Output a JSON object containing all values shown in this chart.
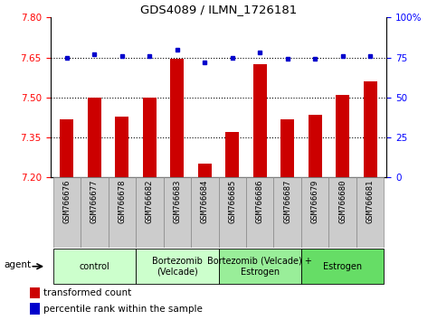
{
  "title": "GDS4089 / ILMN_1726181",
  "samples": [
    "GSM766676",
    "GSM766677",
    "GSM766678",
    "GSM766682",
    "GSM766683",
    "GSM766684",
    "GSM766685",
    "GSM766686",
    "GSM766687",
    "GSM766679",
    "GSM766680",
    "GSM766681"
  ],
  "transformed_count": [
    7.42,
    7.5,
    7.43,
    7.5,
    7.645,
    7.252,
    7.37,
    7.625,
    7.42,
    7.435,
    7.51,
    7.56
  ],
  "percentile_rank": [
    75,
    77,
    76,
    76,
    80,
    72,
    75,
    78,
    74,
    74,
    76,
    76
  ],
  "groups": [
    {
      "label": "control",
      "start": 0,
      "end": 3,
      "color": "#ccffcc"
    },
    {
      "label": "Bortezomib\n(Velcade)",
      "start": 3,
      "end": 6,
      "color": "#ccffcc"
    },
    {
      "label": "Bortezomib (Velcade) +\nEstrogen",
      "start": 6,
      "end": 9,
      "color": "#99ff99"
    },
    {
      "label": "Estrogen",
      "start": 9,
      "end": 12,
      "color": "#66ff66"
    }
  ],
  "group_colors": [
    "#ccffcc",
    "#ccffcc",
    "#99ee99",
    "#66dd66"
  ],
  "ylim_left": [
    7.2,
    7.8
  ],
  "ylim_right": [
    0,
    100
  ],
  "yticks_left": [
    7.2,
    7.35,
    7.5,
    7.65,
    7.8
  ],
  "yticks_right": [
    0,
    25,
    50,
    75,
    100
  ],
  "bar_color": "#cc0000",
  "dot_color": "#0000cc",
  "bar_width": 0.5,
  "legend_labels": [
    "transformed count",
    "percentile rank within the sample"
  ],
  "legend_colors": [
    "#cc0000",
    "#0000cc"
  ],
  "agent_label": "agent",
  "dotted_line_ticks": [
    7.35,
    7.5,
    7.65
  ],
  "tick_bg_color": "#cccccc",
  "tick_edge_color": "#888888"
}
